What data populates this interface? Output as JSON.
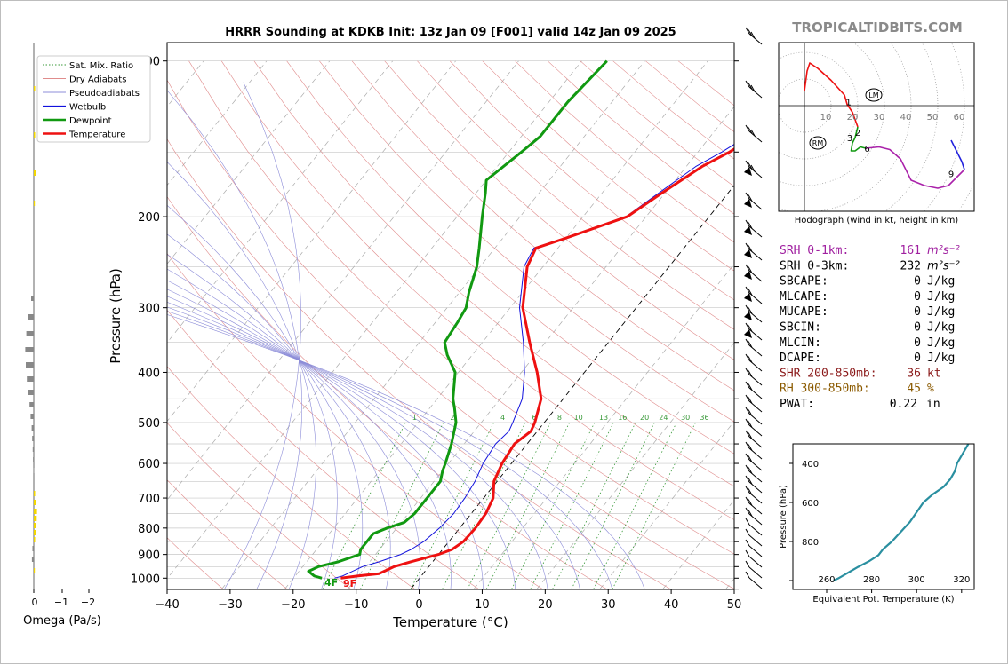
{
  "title": "HRRR Sounding at KDKB Init: 13z Jan 09 [F001] valid 14z Jan 09 2025",
  "watermark": "TROPICALTIDBITS.COM",
  "colors": {
    "temperature": "#ee1111",
    "dewpoint": "#119911",
    "wetbulb": "#1111dd",
    "theta_e": "#2a8fa0",
    "srh01": "#a020a0",
    "shr": "#8b1a1a",
    "rh": "#8b5a00",
    "omega_up": "#f2d600",
    "omega_down": "#888888",
    "hodo_0_3": "#ee1111",
    "hodo_3_6": "#119911",
    "hodo_6_9": "#aa22aa",
    "hodo_9_12": "#2222dd"
  },
  "omega": {
    "xlabel": "Omega (Pa/s)",
    "ticks": [
      "0",
      "−1",
      "−2"
    ]
  },
  "legend": {
    "items": [
      {
        "label": "Sat. Mix. Ratio",
        "style": "dotted-green"
      },
      {
        "label": "Dry Adiabats",
        "style": "red-thin"
      },
      {
        "label": "Pseudoadiabats",
        "style": "blue-thin"
      },
      {
        "label": "Wetbulb",
        "style": "blue"
      },
      {
        "label": "Dewpoint",
        "style": "green-thick"
      },
      {
        "label": "Temperature",
        "style": "red-thick"
      }
    ]
  },
  "skewt": {
    "xlabel": "Temperature (°C)",
    "ylabel": "Pressure (hPa)",
    "xticks": [
      "−40",
      "−30",
      "−20",
      "−10",
      "0",
      "10",
      "20",
      "30",
      "40",
      "50"
    ],
    "yticks": [
      "100",
      "200",
      "300",
      "400",
      "500",
      "600",
      "700",
      "800",
      "900",
      "1000"
    ],
    "mixing_ratio_labels": [
      "1",
      "2",
      "4",
      "6",
      "8",
      "10",
      "13",
      "16",
      "20",
      "24",
      "30",
      "36"
    ],
    "surface_dewpoint_label": "4F",
    "surface_temperature_label": "9F"
  },
  "chart_data": [
    {
      "type": "line",
      "title": "HRRR Sounding at KDKB Init: 13z Jan 09 [F001] valid 14z Jan 09 2025",
      "xlabel": "Temperature (°C)",
      "ylabel": "Pressure (hPa)",
      "xlim": [
        -40,
        50
      ],
      "ylim": [
        1050,
        100
      ],
      "yscale": "log",
      "skew": "skew-T log-p",
      "grid": true,
      "legend": "top-left",
      "series": [
        {
          "name": "Temperature",
          "points": [
            [
              1000,
              -12.5
            ],
            [
              990,
              -10
            ],
            [
              980,
              -7
            ],
            [
              970,
              -6.5
            ],
            [
              950,
              -5.5
            ],
            [
              930,
              -3.5
            ],
            [
              900,
              0
            ],
            [
              880,
              1.5
            ],
            [
              850,
              2.3
            ],
            [
              800,
              2.5
            ],
            [
              750,
              2.3
            ],
            [
              700,
              1.5
            ],
            [
              650,
              -0.5
            ],
            [
              600,
              -1.5
            ],
            [
              550,
              -2
            ],
            [
              520,
              -1
            ],
            [
              500,
              -1.5
            ],
            [
              450,
              -3.5
            ],
            [
              400,
              -7.5
            ],
            [
              350,
              -12.5
            ],
            [
              300,
              -18
            ],
            [
              250,
              -22.5
            ],
            [
              230,
              -23.5
            ],
            [
              220,
              -20
            ],
            [
              200,
              -13
            ],
            [
              180,
              -10.5
            ],
            [
              160,
              -7.5
            ],
            [
              150,
              -5
            ],
            [
              140,
              -3
            ],
            [
              120,
              -1
            ],
            [
              100,
              2
            ]
          ]
        },
        {
          "name": "Dewpoint",
          "points": [
            [
              1000,
              -15.5
            ],
            [
              990,
              -17
            ],
            [
              970,
              -18.5
            ],
            [
              950,
              -17.5
            ],
            [
              930,
              -15
            ],
            [
              900,
              -12.5
            ],
            [
              880,
              -13
            ],
            [
              850,
              -13
            ],
            [
              820,
              -13
            ],
            [
              800,
              -11.5
            ],
            [
              780,
              -9.5
            ],
            [
              750,
              -9
            ],
            [
              700,
              -9
            ],
            [
              650,
              -9
            ],
            [
              620,
              -10
            ],
            [
              600,
              -10.5
            ],
            [
              550,
              -12
            ],
            [
              500,
              -14
            ],
            [
              470,
              -16
            ],
            [
              450,
              -17.5
            ],
            [
              400,
              -20.5
            ],
            [
              370,
              -24
            ],
            [
              350,
              -26
            ],
            [
              320,
              -26.5
            ],
            [
              300,
              -27
            ],
            [
              280,
              -28.5
            ],
            [
              250,
              -30.5
            ],
            [
              230,
              -32.5
            ],
            [
              200,
              -36
            ],
            [
              180,
              -38.5
            ],
            [
              170,
              -40
            ],
            [
              150,
              -38
            ],
            [
              140,
              -37
            ],
            [
              120,
              -37
            ],
            [
              100,
              -36
            ]
          ]
        },
        {
          "name": "Wetbulb",
          "points": [
            [
              1000,
              -13.5
            ],
            [
              990,
              -12.5
            ],
            [
              970,
              -11.5
            ],
            [
              950,
              -10.5
            ],
            [
              930,
              -8.5
            ],
            [
              900,
              -6
            ],
            [
              880,
              -5
            ],
            [
              850,
              -4
            ],
            [
              800,
              -3.2
            ],
            [
              750,
              -2.8
            ],
            [
              700,
              -3
            ],
            [
              650,
              -3.5
            ],
            [
              600,
              -4.5
            ],
            [
              550,
              -5
            ],
            [
              520,
              -4.5
            ],
            [
              500,
              -5
            ],
            [
              450,
              -6.5
            ],
            [
              400,
              -9.5
            ],
            [
              350,
              -13.5
            ],
            [
              300,
              -18.5
            ],
            [
              250,
              -23
            ],
            [
              230,
              -23.8
            ],
            [
              220,
              -20.2
            ],
            [
              200,
              -13.2
            ],
            [
              180,
              -11
            ],
            [
              160,
              -8.5
            ],
            [
              150,
              -6.2
            ],
            [
              140,
              -4.2
            ],
            [
              120,
              -2.5
            ],
            [
              100,
              0
            ]
          ]
        }
      ]
    },
    {
      "type": "line",
      "title": "Hodograph (wind in kt, height in km)",
      "xlim": [
        -10,
        65
      ],
      "ylim": [
        -40,
        25
      ],
      "ring_labels": [
        "10",
        "20",
        "30",
        "40",
        "50",
        "60"
      ],
      "height_labels": [
        "1",
        "2",
        "3",
        "6",
        "9"
      ],
      "markers": [
        {
          "label": "LM",
          "u": 26,
          "v": 4
        },
        {
          "label": "RM",
          "u": 5,
          "v": -14
        }
      ],
      "series": [
        {
          "name": "0-3 km",
          "points": [
            [
              0,
              5.5
            ],
            [
              1,
              13
            ],
            [
              2,
              16
            ],
            [
              5,
              14
            ],
            [
              10,
              9.5
            ],
            [
              15,
              4
            ],
            [
              16,
              0.5
            ],
            [
              18,
              -2.5
            ],
            [
              20,
              -8
            ]
          ]
        },
        {
          "name": "3-6 km",
          "points": [
            [
              20,
              -8
            ],
            [
              19,
              -12
            ],
            [
              18,
              -14
            ],
            [
              17.5,
              -17
            ],
            [
              19,
              -17
            ],
            [
              21,
              -15.5
            ],
            [
              23,
              -16
            ]
          ]
        },
        {
          "name": "6-9 km",
          "points": [
            [
              23,
              -16
            ],
            [
              28,
              -15.5
            ],
            [
              32,
              -16.5
            ],
            [
              36,
              -20
            ],
            [
              38,
              -24
            ],
            [
              40,
              -28
            ],
            [
              45,
              -30
            ],
            [
              50,
              -31
            ],
            [
              54,
              -30
            ],
            [
              58,
              -26
            ],
            [
              60,
              -24
            ]
          ]
        },
        {
          "name": "9-12 km",
          "points": [
            [
              60,
              -24
            ],
            [
              59,
              -21
            ],
            [
              57,
              -17
            ],
            [
              55,
              -13
            ]
          ]
        }
      ]
    },
    {
      "type": "line",
      "xlabel": "Equivalent Pot. Temperature (K)",
      "ylabel": "Pressure (hPa)",
      "xlim": [
        255,
        323
      ],
      "ylim": [
        1000,
        300
      ],
      "xticks": [
        "260",
        "280",
        "300",
        "320"
      ],
      "yticks": [
        "400",
        "600",
        "800"
      ],
      "series": [
        {
          "name": "",
          "points": [
            [
              1000,
              263
            ],
            [
              990,
              265
            ],
            [
              970,
              268
            ],
            [
              950,
              271
            ],
            [
              930,
              274
            ],
            [
              900,
              279
            ],
            [
              870,
              283
            ],
            [
              840,
              285
            ],
            [
              800,
              289
            ],
            [
              750,
              293
            ],
            [
              700,
              297
            ],
            [
              650,
              300
            ],
            [
              600,
              303
            ],
            [
              560,
              307
            ],
            [
              520,
              312
            ],
            [
              480,
              315
            ],
            [
              440,
              317
            ],
            [
              400,
              318
            ],
            [
              360,
              320
            ],
            [
              320,
              322
            ],
            [
              300,
              323
            ]
          ]
        }
      ]
    },
    {
      "type": "table",
      "rows": [
        {
          "label": "SRH 0-1km:",
          "value": "161",
          "unit": "m²s⁻²",
          "color": "srh01"
        },
        {
          "label": "SRH 0-3km:",
          "value": "232",
          "unit": "m²s⁻²",
          "color": "black"
        },
        {
          "label": "SBCAPE:",
          "value": "0",
          "unit": "J/kg",
          "color": "black"
        },
        {
          "label": "MLCAPE:",
          "value": "0",
          "unit": "J/kg",
          "color": "black"
        },
        {
          "label": "MUCAPE:",
          "value": "0",
          "unit": "J/kg",
          "color": "black"
        },
        {
          "label": "SBCIN:",
          "value": "0",
          "unit": "J/kg",
          "color": "black"
        },
        {
          "label": "MLCIN:",
          "value": "0",
          "unit": "J/kg",
          "color": "black"
        },
        {
          "label": "DCAPE:",
          "value": "0",
          "unit": "J/kg",
          "color": "black"
        },
        {
          "label": "SHR 200-850mb:",
          "value": "36",
          "unit": "kt",
          "color": "shr"
        },
        {
          "label": "RH 300-850mb:",
          "value": "45",
          "unit": "%",
          "color": "rh"
        },
        {
          "label": "PWAT:",
          "value": "0.22",
          "unit": "in",
          "color": "black"
        }
      ]
    }
  ]
}
